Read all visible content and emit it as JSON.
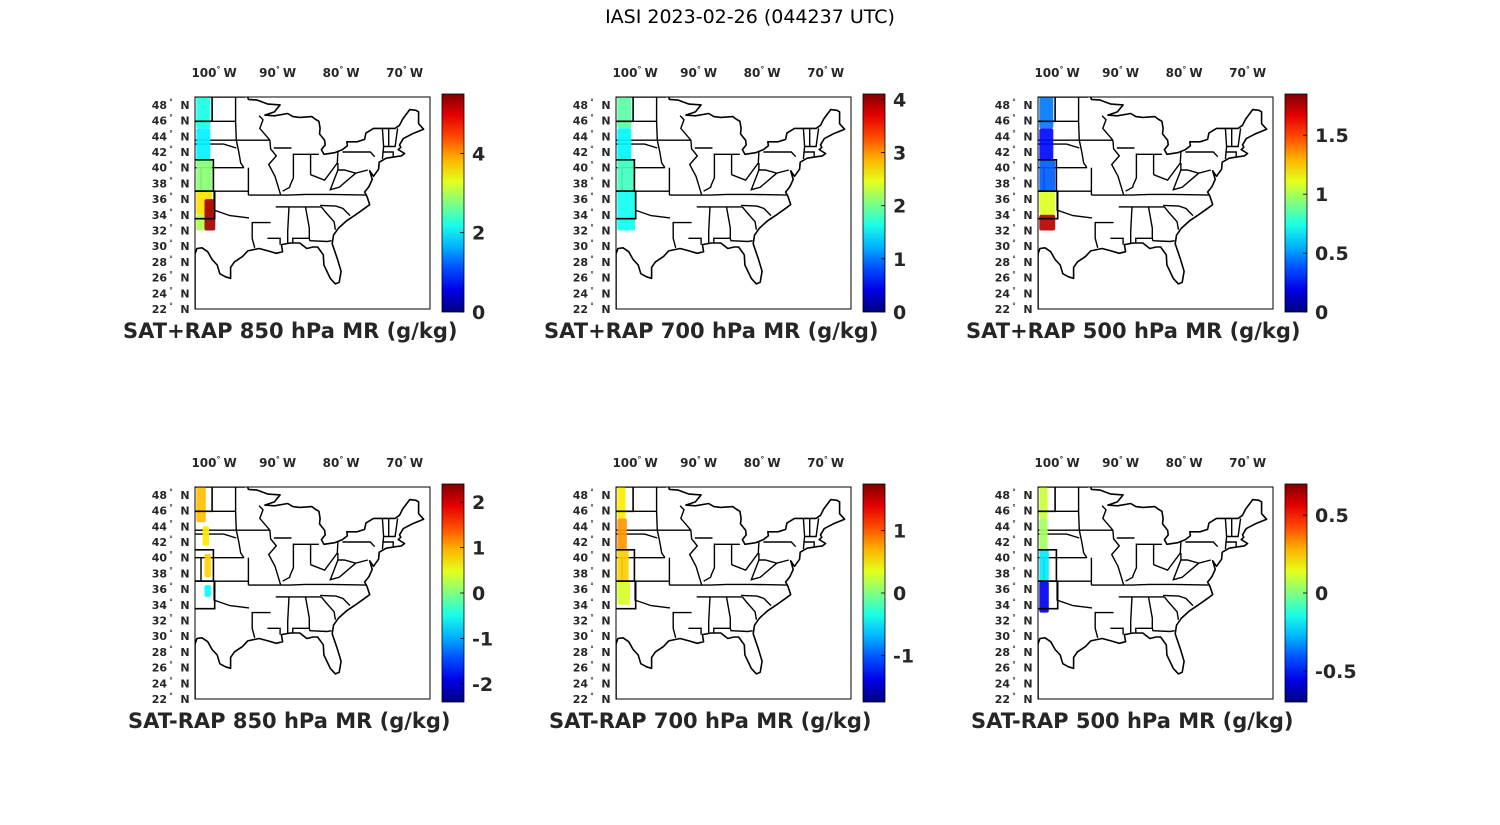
{
  "figure_title": "IASI 2023-02-26 (044237 UTC)",
  "map": {
    "lon_ticks": [
      {
        "deg": "100",
        "lon": -100
      },
      {
        "deg": "90",
        "lon": -90
      },
      {
        "deg": "80",
        "lon": -80
      },
      {
        "deg": "70",
        "lon": -70
      }
    ],
    "lon_suffix": "W",
    "lat_ticks": [
      48,
      46,
      44,
      42,
      40,
      38,
      36,
      34,
      32,
      30,
      28,
      26,
      24,
      22
    ],
    "lat_suffix": "N",
    "degree_symbol": "°",
    "extent": {
      "lon_min": -103,
      "lon_max": -66,
      "lat_min": 22,
      "lat_max": 49
    }
  },
  "colormap": "jet",
  "panels": [
    {
      "title": "SAT+RAP 850 hPa MR (g/kg)",
      "colorbar": {
        "min": 0,
        "max": 5.5,
        "ticks": [
          {
            "v": 0,
            "label": "0"
          },
          {
            "v": 2,
            "label": "2"
          },
          {
            "v": 4,
            "label": "4"
          }
        ]
      },
      "swath": [
        {
          "lat": [
            45,
            49
          ],
          "lon": [
            -102.8,
            -100.6
          ],
          "value": 2.2
        },
        {
          "lat": [
            41,
            45
          ],
          "lon": [
            -102.8,
            -100.6
          ],
          "value": 2.0
        },
        {
          "lat": [
            37,
            41
          ],
          "lon": [
            -102.8,
            -100.3
          ],
          "value": 2.8
        },
        {
          "lat": [
            34,
            37
          ],
          "lon": [
            -102.8,
            -100.3
          ],
          "value": 3.6
        },
        {
          "lat": [
            32,
            34
          ],
          "lon": [
            -102.8,
            -101.2
          ],
          "value": 3.0
        },
        {
          "lat": [
            32,
            36
          ],
          "lon": [
            -101.5,
            -99.8
          ],
          "value": 5.3
        }
      ]
    },
    {
      "title": "SAT+RAP 700 hPa MR (g/kg)",
      "colorbar": {
        "min": 0,
        "max": 4.1,
        "ticks": [
          {
            "v": 0,
            "label": "0"
          },
          {
            "v": 1,
            "label": "1"
          },
          {
            "v": 2,
            "label": "2"
          },
          {
            "v": 3,
            "label": "3"
          },
          {
            "v": 4,
            "label": "4"
          }
        ]
      },
      "swath": [
        {
          "lat": [
            45,
            49
          ],
          "lon": [
            -102.8,
            -100.6
          ],
          "value": 1.9
        },
        {
          "lat": [
            41,
            45
          ],
          "lon": [
            -102.8,
            -100.6
          ],
          "value": 1.5
        },
        {
          "lat": [
            37,
            41
          ],
          "lon": [
            -102.8,
            -100.0
          ],
          "value": 1.8
        },
        {
          "lat": [
            32,
            37
          ],
          "lon": [
            -102.8,
            -100.0
          ],
          "value": 1.6
        }
      ]
    },
    {
      "title": "SAT+RAP 500 hPa MR (g/kg)",
      "colorbar": {
        "min": 0,
        "max": 1.85,
        "ticks": [
          {
            "v": 0,
            "label": "0"
          },
          {
            "v": 0.5,
            "label": "0.5"
          },
          {
            "v": 1,
            "label": "1"
          },
          {
            "v": 1.5,
            "label": "1.5"
          }
        ]
      },
      "swath": [
        {
          "lat": [
            45,
            49
          ],
          "lon": [
            -102.8,
            -100.6
          ],
          "value": 0.45
        },
        {
          "lat": [
            41,
            45
          ],
          "lon": [
            -102.8,
            -100.6
          ],
          "value": 0.25
        },
        {
          "lat": [
            37,
            41
          ],
          "lon": [
            -102.8,
            -100.3
          ],
          "value": 0.4
        },
        {
          "lat": [
            34,
            37
          ],
          "lon": [
            -102.8,
            -100.3
          ],
          "value": 1.1
        },
        {
          "lat": [
            32,
            34
          ],
          "lon": [
            -102.8,
            -100.3
          ],
          "value": 1.75
        }
      ]
    },
    {
      "title": "SAT-RAP 850 hPa MR (g/kg)",
      "colorbar": {
        "min": -2.4,
        "max": 2.4,
        "ticks": [
          {
            "v": -2,
            "label": "-2"
          },
          {
            "v": -1,
            "label": "-1"
          },
          {
            "v": 0,
            "label": "0"
          },
          {
            "v": 1,
            "label": "1"
          },
          {
            "v": 2,
            "label": "2"
          }
        ]
      },
      "swath": [
        {
          "lat": [
            44.5,
            49
          ],
          "lon": [
            -102.8,
            -101.3
          ],
          "value": 0.9
        },
        {
          "lat": [
            41.5,
            44
          ],
          "lon": [
            -101.8,
            -100.8
          ],
          "value": 0.7
        },
        {
          "lat": [
            37.5,
            40.5
          ],
          "lon": [
            -101.5,
            -100.5
          ],
          "value": 0.8
        },
        {
          "lat": [
            35,
            36.5
          ],
          "lon": [
            -101.5,
            -100.5
          ],
          "value": -0.6
        }
      ]
    },
    {
      "title": "SAT-RAP 700 hPa MR (g/kg)",
      "colorbar": {
        "min": -1.75,
        "max": 1.75,
        "ticks": [
          {
            "v": -1,
            "label": "-1"
          },
          {
            "v": 0,
            "label": "0"
          },
          {
            "v": 1,
            "label": "1"
          }
        ]
      },
      "swath": [
        {
          "lat": [
            45,
            49
          ],
          "lon": [
            -102.8,
            -101.5
          ],
          "value": 0.5
        },
        {
          "lat": [
            41,
            45
          ],
          "lon": [
            -102.8,
            -101.3
          ],
          "value": 0.8
        },
        {
          "lat": [
            37,
            41
          ],
          "lon": [
            -102.8,
            -101.0
          ],
          "value": 0.6
        },
        {
          "lat": [
            34,
            37
          ],
          "lon": [
            -102.8,
            -100.8
          ],
          "value": 0.3
        }
      ]
    },
    {
      "title": "SAT-RAP 500 hPa MR (g/kg)",
      "colorbar": {
        "min": -0.7,
        "max": 0.7,
        "ticks": [
          {
            "v": -0.5,
            "label": "-0.5"
          },
          {
            "v": 0,
            "label": "0"
          },
          {
            "v": 0.5,
            "label": "0.5"
          }
        ]
      },
      "swath": [
        {
          "lat": [
            45,
            49
          ],
          "lon": [
            -102.8,
            -101.5
          ],
          "value": 0.1
        },
        {
          "lat": [
            41,
            45
          ],
          "lon": [
            -102.8,
            -101.5
          ],
          "value": 0.05
        },
        {
          "lat": [
            37,
            41
          ],
          "lon": [
            -102.8,
            -101.3
          ],
          "value": -0.2
        },
        {
          "lat": [
            33,
            37
          ],
          "lon": [
            -102.8,
            -101.3
          ],
          "value": -0.55
        }
      ]
    }
  ]
}
